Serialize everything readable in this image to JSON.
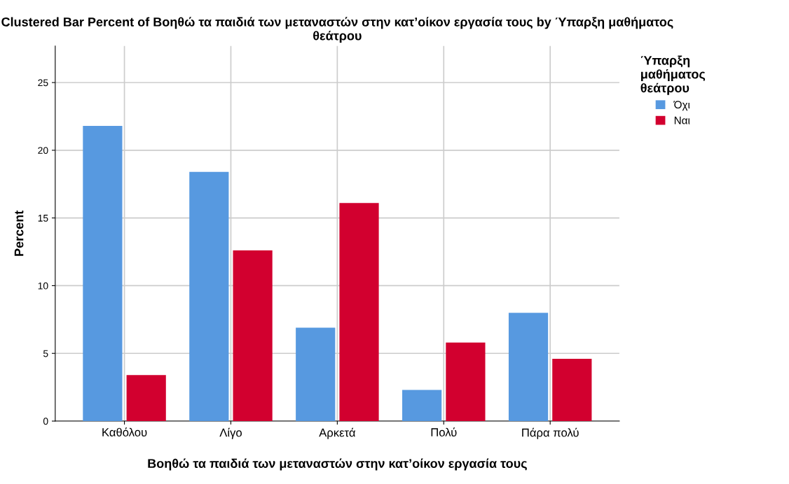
{
  "chart_data": {
    "type": "bar",
    "title": "Clustered Bar Percent of Βοηθώ τα παιδιά των μεταναστών στην κατ’οίκον εργασία τους by Ύπαρξη μαθήματος θεάτρου",
    "xlabel": "Βοηθώ τα παιδιά των μεταναστών στην κατ’οίκον εργασία τους",
    "ylabel": "Percent",
    "legend_title": "Ύπαρξη\nμαθήματος\nθεάτρου",
    "categories": [
      "Καθόλου",
      "Λίγο",
      "Αρκετά",
      "Πολύ",
      "Πάρα πολύ"
    ],
    "series": [
      {
        "name": "Όχι",
        "color": "#5799e0",
        "values": [
          21.8,
          18.4,
          6.9,
          2.3,
          8.0
        ]
      },
      {
        "name": "Ναι",
        "color": "#d2002f",
        "values": [
          3.4,
          12.6,
          16.1,
          5.8,
          4.6
        ]
      }
    ],
    "ylim": [
      0,
      27.7
    ],
    "yticks": [
      0,
      5,
      10,
      15,
      20,
      25
    ],
    "grid": true,
    "legend": "top right"
  }
}
